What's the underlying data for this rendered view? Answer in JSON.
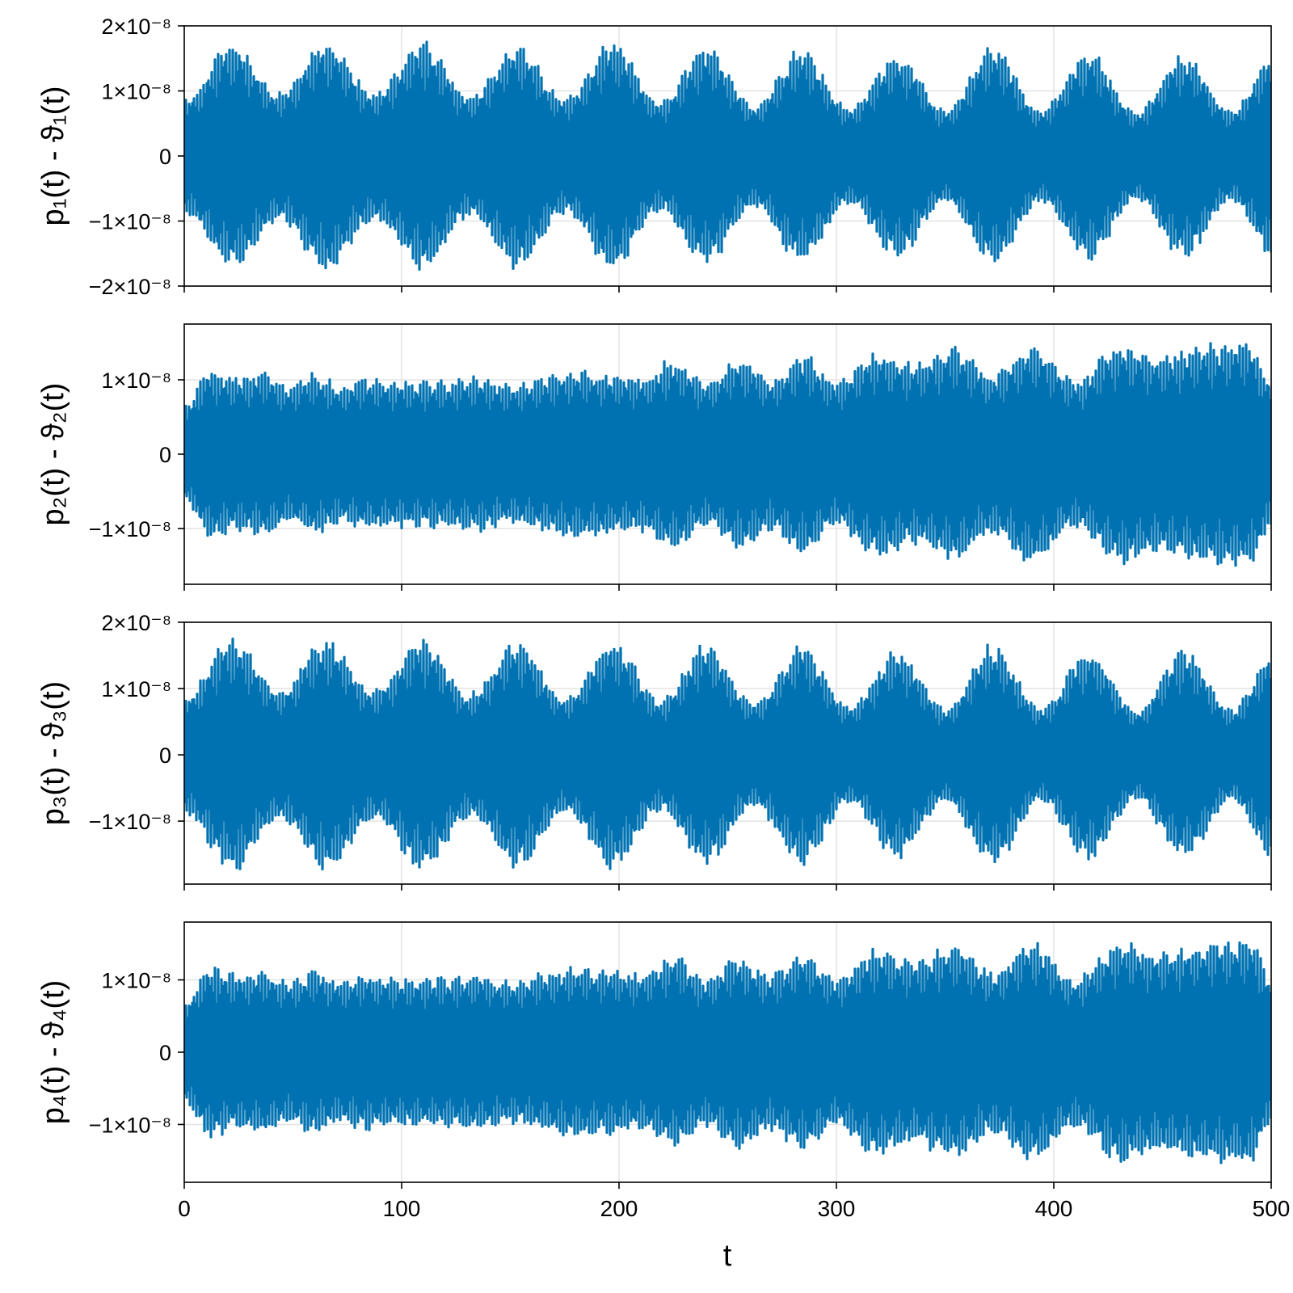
{
  "chart_data": [
    {
      "type": "line",
      "ylabel": "p₁(t) - ϑ₁(t)",
      "xlim": [
        0,
        500
      ],
      "ylim": [
        -2e-08,
        2e-08
      ],
      "xticks": [
        0,
        100,
        200,
        300,
        400,
        500
      ],
      "yticks": [
        {
          "value": 2e-08,
          "label": "2×10⁻⁸"
        },
        {
          "value": 1e-08,
          "label": "1×10⁻⁸"
        },
        {
          "value": 0,
          "label": "0"
        },
        {
          "value": -1e-08,
          "label": "−1×10⁻⁸"
        },
        {
          "value": -2e-08,
          "label": "−2×10⁻⁸"
        }
      ],
      "grid": true,
      "color": "#0072b2",
      "envelope": {
        "description_free": true,
        "t": [
          0,
          22,
          44,
          65,
          87,
          110,
          131,
          153,
          175,
          197,
          219,
          240,
          262,
          284,
          306,
          328,
          350,
          372,
          394,
          416,
          438,
          460,
          482,
          500
        ],
        "amplitude": [
          9e-09,
          1.78e-08,
          1e-08,
          1.82e-08,
          1e-08,
          1.78e-08,
          9.5e-09,
          1.75e-08,
          9e-09,
          1.78e-08,
          8.5e-09,
          1.7e-08,
          8e-09,
          1.68e-08,
          7.5e-09,
          1.6e-08,
          7.2e-09,
          1.7e-08,
          7.2e-09,
          1.62e-08,
          7e-09,
          1.6e-08,
          7e-09,
          1.55e-08
        ]
      }
    },
    {
      "type": "line",
      "ylabel": "p₂(t) - ϑ₂(t)",
      "xlim": [
        0,
        500
      ],
      "ylim": [
        -1.75e-08,
        1.75e-08
      ],
      "xticks": [
        0,
        100,
        200,
        300,
        400,
        500
      ],
      "yticks": [
        {
          "value": 1e-08,
          "label": "1×10⁻⁸"
        },
        {
          "value": 0,
          "label": "0"
        },
        {
          "value": -1e-08,
          "label": "−1×10⁻⁸"
        }
      ],
      "grid": true,
      "color": "#0072b2",
      "envelope": {
        "t": [
          0,
          12,
          24,
          36,
          48,
          60,
          72,
          84,
          96,
          108,
          120,
          135,
          150,
          165,
          180,
          195,
          210,
          225,
          240,
          255,
          270,
          285,
          300,
          318,
          336,
          354,
          372,
          390,
          410,
          430,
          450,
          470,
          490,
          500
        ],
        "amplitude": [
          6.5e-09,
          1.15e-08,
          1.05e-08,
          1.12e-08,
          9.5e-09,
          1.1e-08,
          9.5e-09,
          1.05e-08,
          1e-08,
          1e-08,
          1e-08,
          1.05e-08,
          9.5e-09,
          1.05e-08,
          1.15e-08,
          1.1e-08,
          1.05e-08,
          1.3e-08,
          1e-08,
          1.3e-08,
          1.05e-08,
          1.35e-08,
          1e-08,
          1.4e-08,
          1.25e-08,
          1.45e-08,
          1.1e-08,
          1.5e-08,
          1e-08,
          1.5e-08,
          1.35e-08,
          1.5e-08,
          1.55e-08,
          1e-08
        ]
      }
    },
    {
      "type": "line",
      "ylabel": "p₃(t) - ϑ₃(t)",
      "xlim": [
        0,
        500
      ],
      "ylim": [
        -1.95e-08,
        2e-08
      ],
      "xticks": [
        0,
        100,
        200,
        300,
        400,
        500
      ],
      "yticks": [
        {
          "value": 2e-08,
          "label": "2×10⁻⁸"
        },
        {
          "value": 1e-08,
          "label": "1×10⁻⁸"
        },
        {
          "value": 0,
          "label": "0"
        },
        {
          "value": -1e-08,
          "label": "−1×10⁻⁸"
        }
      ],
      "grid": true,
      "color": "#0072b2",
      "envelope": {
        "t": [
          0,
          22,
          44,
          65,
          87,
          110,
          131,
          153,
          175,
          197,
          219,
          240,
          262,
          284,
          306,
          328,
          350,
          372,
          394,
          416,
          438,
          460,
          482,
          500
        ],
        "amplitude": [
          9e-09,
          1.78e-08,
          1e-08,
          1.8e-08,
          1e-08,
          1.78e-08,
          9.5e-09,
          1.75e-08,
          9e-09,
          1.75e-08,
          8.5e-09,
          1.7e-08,
          8e-09,
          1.68e-08,
          7.5e-09,
          1.6e-08,
          7.2e-09,
          1.7e-08,
          7.2e-09,
          1.62e-08,
          7e-09,
          1.6e-08,
          7e-09,
          1.55e-08
        ]
      }
    },
    {
      "type": "line",
      "ylabel": "p₄(t) - ϑ₄(t)",
      "xlabel": "t",
      "xlim": [
        0,
        500
      ],
      "ylim": [
        -1.8e-08,
        1.8e-08
      ],
      "xticks": [
        0,
        100,
        200,
        300,
        400,
        500
      ],
      "xticklabels": [
        "0",
        "100",
        "200",
        "300",
        "400",
        "500"
      ],
      "yticks": [
        {
          "value": 1e-08,
          "label": "1×10⁻⁸"
        },
        {
          "value": 0,
          "label": "0"
        },
        {
          "value": -1e-08,
          "label": "−1×10⁻⁸"
        }
      ],
      "grid": true,
      "color": "#0072b2",
      "envelope": {
        "t": [
          0,
          12,
          24,
          36,
          48,
          60,
          72,
          84,
          96,
          108,
          120,
          135,
          150,
          165,
          180,
          195,
          210,
          225,
          240,
          255,
          270,
          285,
          300,
          318,
          336,
          354,
          372,
          390,
          410,
          430,
          450,
          470,
          490,
          500
        ],
        "amplitude": [
          7e-09,
          1.2e-08,
          1.1e-08,
          1.15e-08,
          1e-08,
          1.15e-08,
          1e-08,
          1.1e-08,
          1.05e-08,
          1.05e-08,
          1.05e-08,
          1.1e-08,
          1e-08,
          1.1e-08,
          1.2e-08,
          1.15e-08,
          1.1e-08,
          1.35e-08,
          1.05e-08,
          1.35e-08,
          1.1e-08,
          1.4e-08,
          1.05e-08,
          1.45e-08,
          1.3e-08,
          1.5e-08,
          1.15e-08,
          1.55e-08,
          1.05e-08,
          1.55e-08,
          1.4e-08,
          1.55e-08,
          1.6e-08,
          1.05e-08
        ]
      }
    }
  ]
}
